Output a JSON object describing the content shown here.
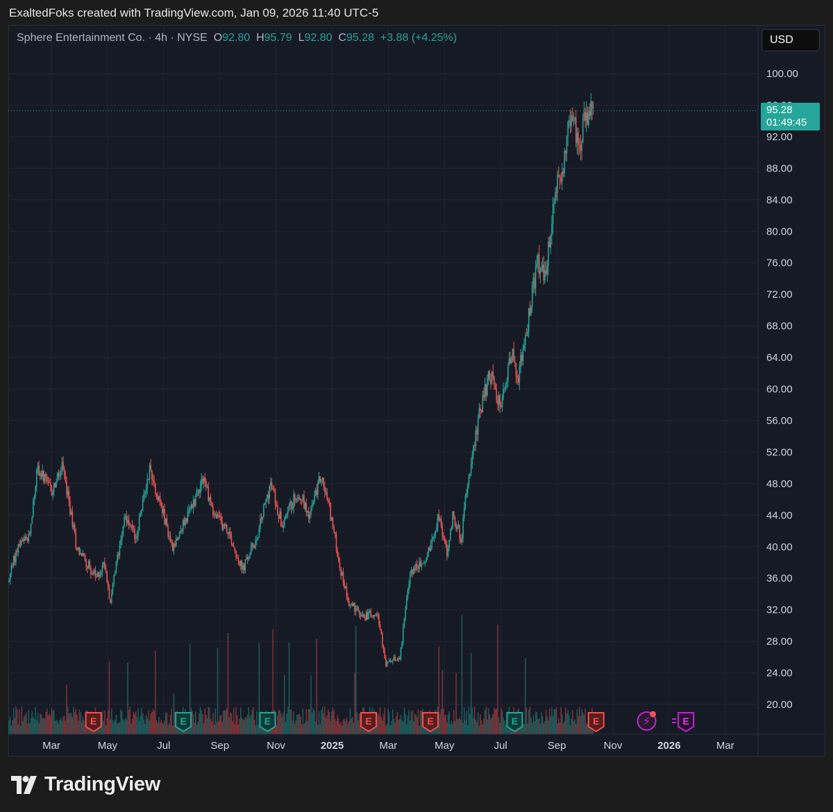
{
  "header": {
    "attribution": "ExaltedFoks created with TradingView.com, Jan 09, 2026 11:40 UTC-5"
  },
  "legend": {
    "symbol": "Sphere Entertainment Co. · 4h · NYSE",
    "o_label": "O",
    "o_value": "92.80",
    "h_label": "H",
    "h_value": "95.79",
    "l_label": "L",
    "l_value": "92.80",
    "c_label": "C",
    "c_value": "95.28",
    "change": "+3.88 (+4.25%)"
  },
  "currency": "USD",
  "price_tag": {
    "price": "95.28",
    "countdown": "01:49:45"
  },
  "footer": {
    "brand": "TradingView"
  },
  "colors": {
    "up": "#26a69a",
    "down": "#ef5350",
    "background": "#161a25",
    "grid": "#232632",
    "accent_earnings_next": "#c026d3"
  },
  "chart_data": {
    "type": "candlestick",
    "interval": "4h",
    "exchange": "NYSE",
    "ylim": [
      16,
      104
    ],
    "y_ticks": [
      20,
      24,
      28,
      32,
      36,
      40,
      44,
      48,
      52,
      56,
      60,
      64,
      68,
      72,
      76,
      80,
      84,
      88,
      92,
      96,
      100
    ],
    "x_ticks": [
      {
        "label": "Mar",
        "t": 2,
        "bold": false
      },
      {
        "label": "May",
        "t": 4,
        "bold": false
      },
      {
        "label": "Jul",
        "t": 6,
        "bold": false
      },
      {
        "label": "Sep",
        "t": 8,
        "bold": false
      },
      {
        "label": "Nov",
        "t": 10,
        "bold": false
      },
      {
        "label": "2025",
        "t": 12,
        "bold": true
      },
      {
        "label": "Mar",
        "t": 14,
        "bold": false
      },
      {
        "label": "May",
        "t": 16,
        "bold": false
      },
      {
        "label": "Jul",
        "t": 18,
        "bold": false
      },
      {
        "label": "Sep",
        "t": 20,
        "bold": false
      },
      {
        "label": "Nov",
        "t": 22,
        "bold": false
      },
      {
        "label": "2026",
        "t": 24,
        "bold": true
      },
      {
        "label": "Mar",
        "t": 26,
        "bold": false
      }
    ],
    "last_price": 95.28,
    "price_path": [
      [
        0.0,
        30
      ],
      [
        0.8,
        40
      ],
      [
        1.2,
        41
      ],
      [
        1.5,
        50
      ],
      [
        2.0,
        47
      ],
      [
        2.4,
        50
      ],
      [
        2.9,
        40
      ],
      [
        3.6,
        36
      ],
      [
        3.9,
        38
      ],
      [
        4.1,
        33
      ],
      [
        4.6,
        44
      ],
      [
        5.0,
        41
      ],
      [
        5.5,
        50
      ],
      [
        6.0,
        44
      ],
      [
        6.3,
        40
      ],
      [
        7.0,
        45
      ],
      [
        7.4,
        49
      ],
      [
        7.8,
        44
      ],
      [
        8.3,
        42
      ],
      [
        8.8,
        37
      ],
      [
        9.3,
        41
      ],
      [
        9.8,
        48
      ],
      [
        10.2,
        43
      ],
      [
        10.8,
        47
      ],
      [
        11.2,
        44
      ],
      [
        11.6,
        49
      ],
      [
        11.9,
        45
      ],
      [
        12.3,
        37
      ],
      [
        12.6,
        33
      ],
      [
        13.1,
        31
      ],
      [
        13.6,
        32
      ],
      [
        13.9,
        25
      ],
      [
        14.4,
        26
      ],
      [
        14.8,
        37
      ],
      [
        15.3,
        38
      ],
      [
        15.8,
        44
      ],
      [
        16.1,
        39
      ],
      [
        16.3,
        44
      ],
      [
        16.6,
        41
      ],
      [
        16.8,
        48
      ],
      [
        17.2,
        56
      ],
      [
        17.6,
        62
      ],
      [
        18.0,
        58
      ],
      [
        18.4,
        65
      ],
      [
        18.6,
        61
      ],
      [
        19.0,
        69
      ],
      [
        19.3,
        76
      ],
      [
        19.6,
        74
      ],
      [
        19.9,
        84
      ],
      [
        20.2,
        88
      ],
      [
        20.5,
        95
      ],
      [
        20.8,
        91
      ],
      [
        21.0,
        94
      ],
      [
        21.3,
        95.28
      ]
    ],
    "earnings_markers": [
      {
        "t": 3.5,
        "label": "E",
        "kind": "miss"
      },
      {
        "t": 6.7,
        "label": "E",
        "kind": "beat"
      },
      {
        "t": 9.7,
        "label": "E",
        "kind": "beat"
      },
      {
        "t": 13.3,
        "label": "E",
        "kind": "miss"
      },
      {
        "t": 15.5,
        "label": "E",
        "kind": "miss"
      },
      {
        "t": 18.5,
        "label": "E",
        "kind": "beat"
      },
      {
        "t": 21.4,
        "label": "E",
        "kind": "miss"
      },
      {
        "t": 23.2,
        "label": "",
        "kind": "event"
      },
      {
        "t": 24.6,
        "label": "E",
        "kind": "next"
      }
    ]
  }
}
